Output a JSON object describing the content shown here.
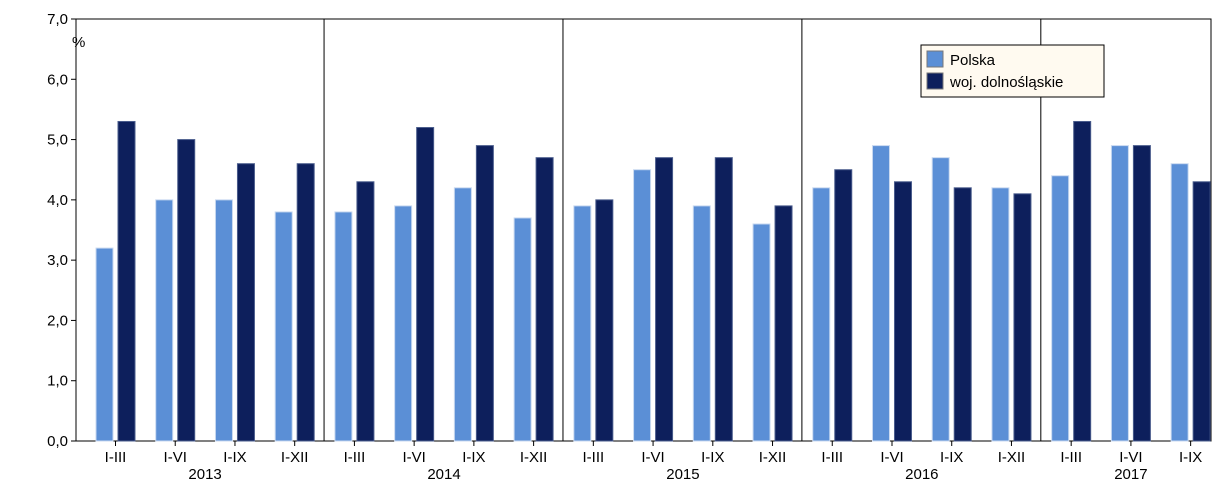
{
  "chart_data": {
    "type": "bar",
    "title": "",
    "unit_label": "%",
    "xlabel": "",
    "ylabel": "",
    "ylim": [
      0,
      7
    ],
    "yticks": [
      "0,0",
      "1,0",
      "2,0",
      "3,0",
      "4,0",
      "5,0",
      "6,0",
      "7,0"
    ],
    "grid": false,
    "legend_position": "top-right",
    "groups": [
      {
        "year": "2013",
        "periods": [
          "I-III",
          "I-VI",
          "I-IX",
          "I-XII"
        ]
      },
      {
        "year": "2014",
        "periods": [
          "I-III",
          "I-VI",
          "I-IX",
          "I-XII"
        ]
      },
      {
        "year": "2015",
        "periods": [
          "I-III",
          "I-VI",
          "I-IX",
          "I-XII"
        ]
      },
      {
        "year": "2016",
        "periods": [
          "I-III",
          "I-VI",
          "I-IX",
          "I-XII"
        ]
      },
      {
        "year": "2017",
        "periods": [
          "I-III",
          "I-VI",
          "I-IX"
        ]
      }
    ],
    "series": [
      {
        "name": "Polska",
        "color": "#5b8fd6",
        "values": [
          3.2,
          4.0,
          4.0,
          3.8,
          3.8,
          3.9,
          4.2,
          3.7,
          3.9,
          4.5,
          3.9,
          3.6,
          4.2,
          4.9,
          4.7,
          4.2,
          4.4,
          4.9,
          4.6
        ]
      },
      {
        "name": "woj. dolnośląskie",
        "color": "#0d1f5c",
        "values": [
          5.3,
          5.0,
          4.6,
          4.6,
          4.3,
          5.2,
          4.9,
          4.7,
          4.0,
          4.7,
          4.7,
          3.9,
          4.5,
          4.3,
          4.2,
          4.1,
          5.3,
          4.9,
          4.3
        ]
      }
    ]
  }
}
